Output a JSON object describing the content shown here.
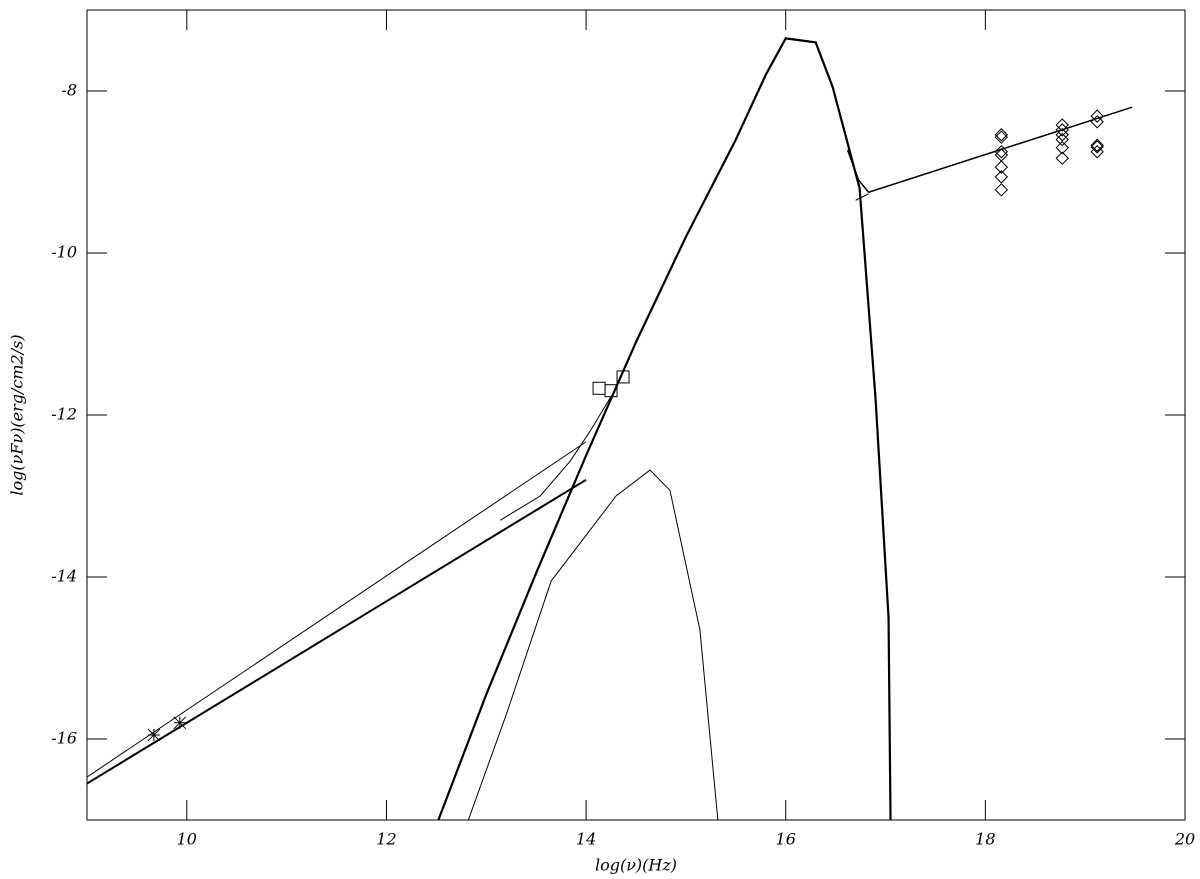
{
  "chart_data": {
    "type": "line",
    "xlabel": "log(ν)(Hz)",
    "ylabel": "log(νFν)(erg/cm2/s)",
    "xlim": [
      9,
      20
    ],
    "ylim": [
      -17,
      -7
    ],
    "xticks": [
      10,
      12,
      14,
      16,
      18,
      20
    ],
    "yticks": [
      -16,
      -14,
      -12,
      -10,
      -8
    ],
    "color": "#000000",
    "series": [
      {
        "marker": "none",
        "width": 2.2,
        "x": [
          12.52,
          13,
          13.5,
          14,
          14.5,
          15,
          15.5,
          15.8,
          16,
          16.3,
          16.47,
          16.74,
          16.9,
          17.03,
          17.05
        ],
        "values": [
          -17,
          -15.45,
          -13.95,
          -12.5,
          -11.1,
          -9.8,
          -8.6,
          -7.8,
          -7.35,
          -7.4,
          -7.95,
          -9.2,
          -11.8,
          -14.5,
          -17
        ]
      },
      {
        "marker": "none",
        "width": 1,
        "x": [
          12.82,
          13.2,
          13.65,
          14.3,
          14.64,
          14.84,
          15.14,
          15.32
        ],
        "values": [
          -17,
          -15.7,
          -14.05,
          -13,
          -12.68,
          -12.93,
          -14.65,
          -17
        ]
      },
      {
        "marker": "none",
        "width": 2,
        "x": [
          9,
          14
        ],
        "values": [
          -16.55,
          -12.8
        ]
      },
      {
        "marker": "none",
        "width": 1,
        "x": [
          9,
          14
        ],
        "values": [
          -16.47,
          -12.33
        ]
      },
      {
        "marker": "none",
        "width": 1,
        "x": [
          13.14,
          13.54,
          13.84,
          14.04,
          14.26
        ],
        "values": [
          -13.3,
          -13,
          -12.57,
          -12.2,
          -11.75
        ]
      },
      {
        "marker": "none",
        "width": 1.5,
        "x": [
          16.62,
          16.73,
          16.83,
          19.47
        ],
        "values": [
          -8.73,
          -9.1,
          -9.25,
          -8.2
        ]
      },
      {
        "marker": "none",
        "width": 1,
        "x": [
          16.7,
          16.83
        ],
        "values": [
          -9.35,
          -9.27
        ]
      },
      {
        "marker": "star",
        "x": [
          9.67,
          9.93
        ],
        "values": [
          -15.95,
          -15.8
        ]
      },
      {
        "marker": "square",
        "x": [
          14.13,
          14.25,
          14.37
        ],
        "values": [
          -11.67,
          -11.7,
          -11.53
        ]
      },
      {
        "marker": "diamond",
        "x": [
          18.16,
          18.16,
          18.16,
          18.16,
          18.16,
          18.16,
          18.16,
          18.77,
          18.77,
          18.77,
          18.77,
          18.77,
          18.77,
          19.12,
          19.12,
          19.12,
          19.12,
          19.12
        ],
        "values": [
          -8.54,
          -8.57,
          -8.75,
          -8.79,
          -8.94,
          -9.06,
          -9.22,
          -8.42,
          -8.48,
          -8.54,
          -8.6,
          -8.7,
          -8.83,
          -8.31,
          -8.38,
          -8.67,
          -8.69,
          -8.75
        ]
      }
    ]
  }
}
